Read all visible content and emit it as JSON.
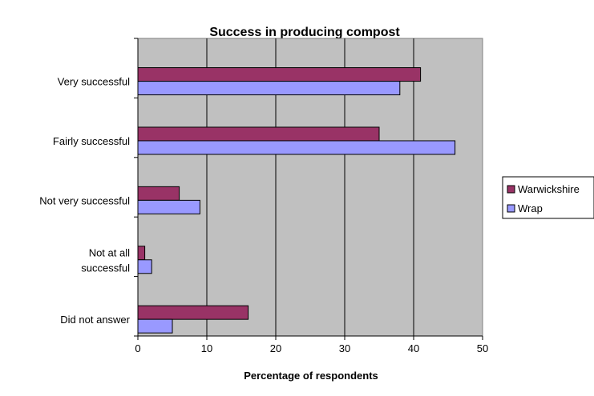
{
  "chart_data": {
    "type": "bar",
    "orientation": "horizontal",
    "title": "Success in producing compost",
    "xlabel": "Percentage of respondents",
    "ylabel": "",
    "xlim": [
      0,
      50
    ],
    "x_ticks": [
      "0",
      "10",
      "20",
      "30",
      "40",
      "50"
    ],
    "grid": "vertical",
    "legend_position": "right",
    "categories": [
      [
        "Very successful"
      ],
      [
        "Fairly successful"
      ],
      [
        "Not very successful"
      ],
      [
        "Not at all",
        "successful"
      ],
      [
        "Did not answer"
      ]
    ],
    "series": [
      {
        "name": "Warwickshire",
        "color": "#993366",
        "values": [
          41,
          35,
          6,
          1,
          16
        ]
      },
      {
        "name": "Wrap",
        "color": "#9999FF",
        "values": [
          38,
          46,
          9,
          2,
          5
        ]
      }
    ],
    "plot_background": "#C0C0C0"
  }
}
